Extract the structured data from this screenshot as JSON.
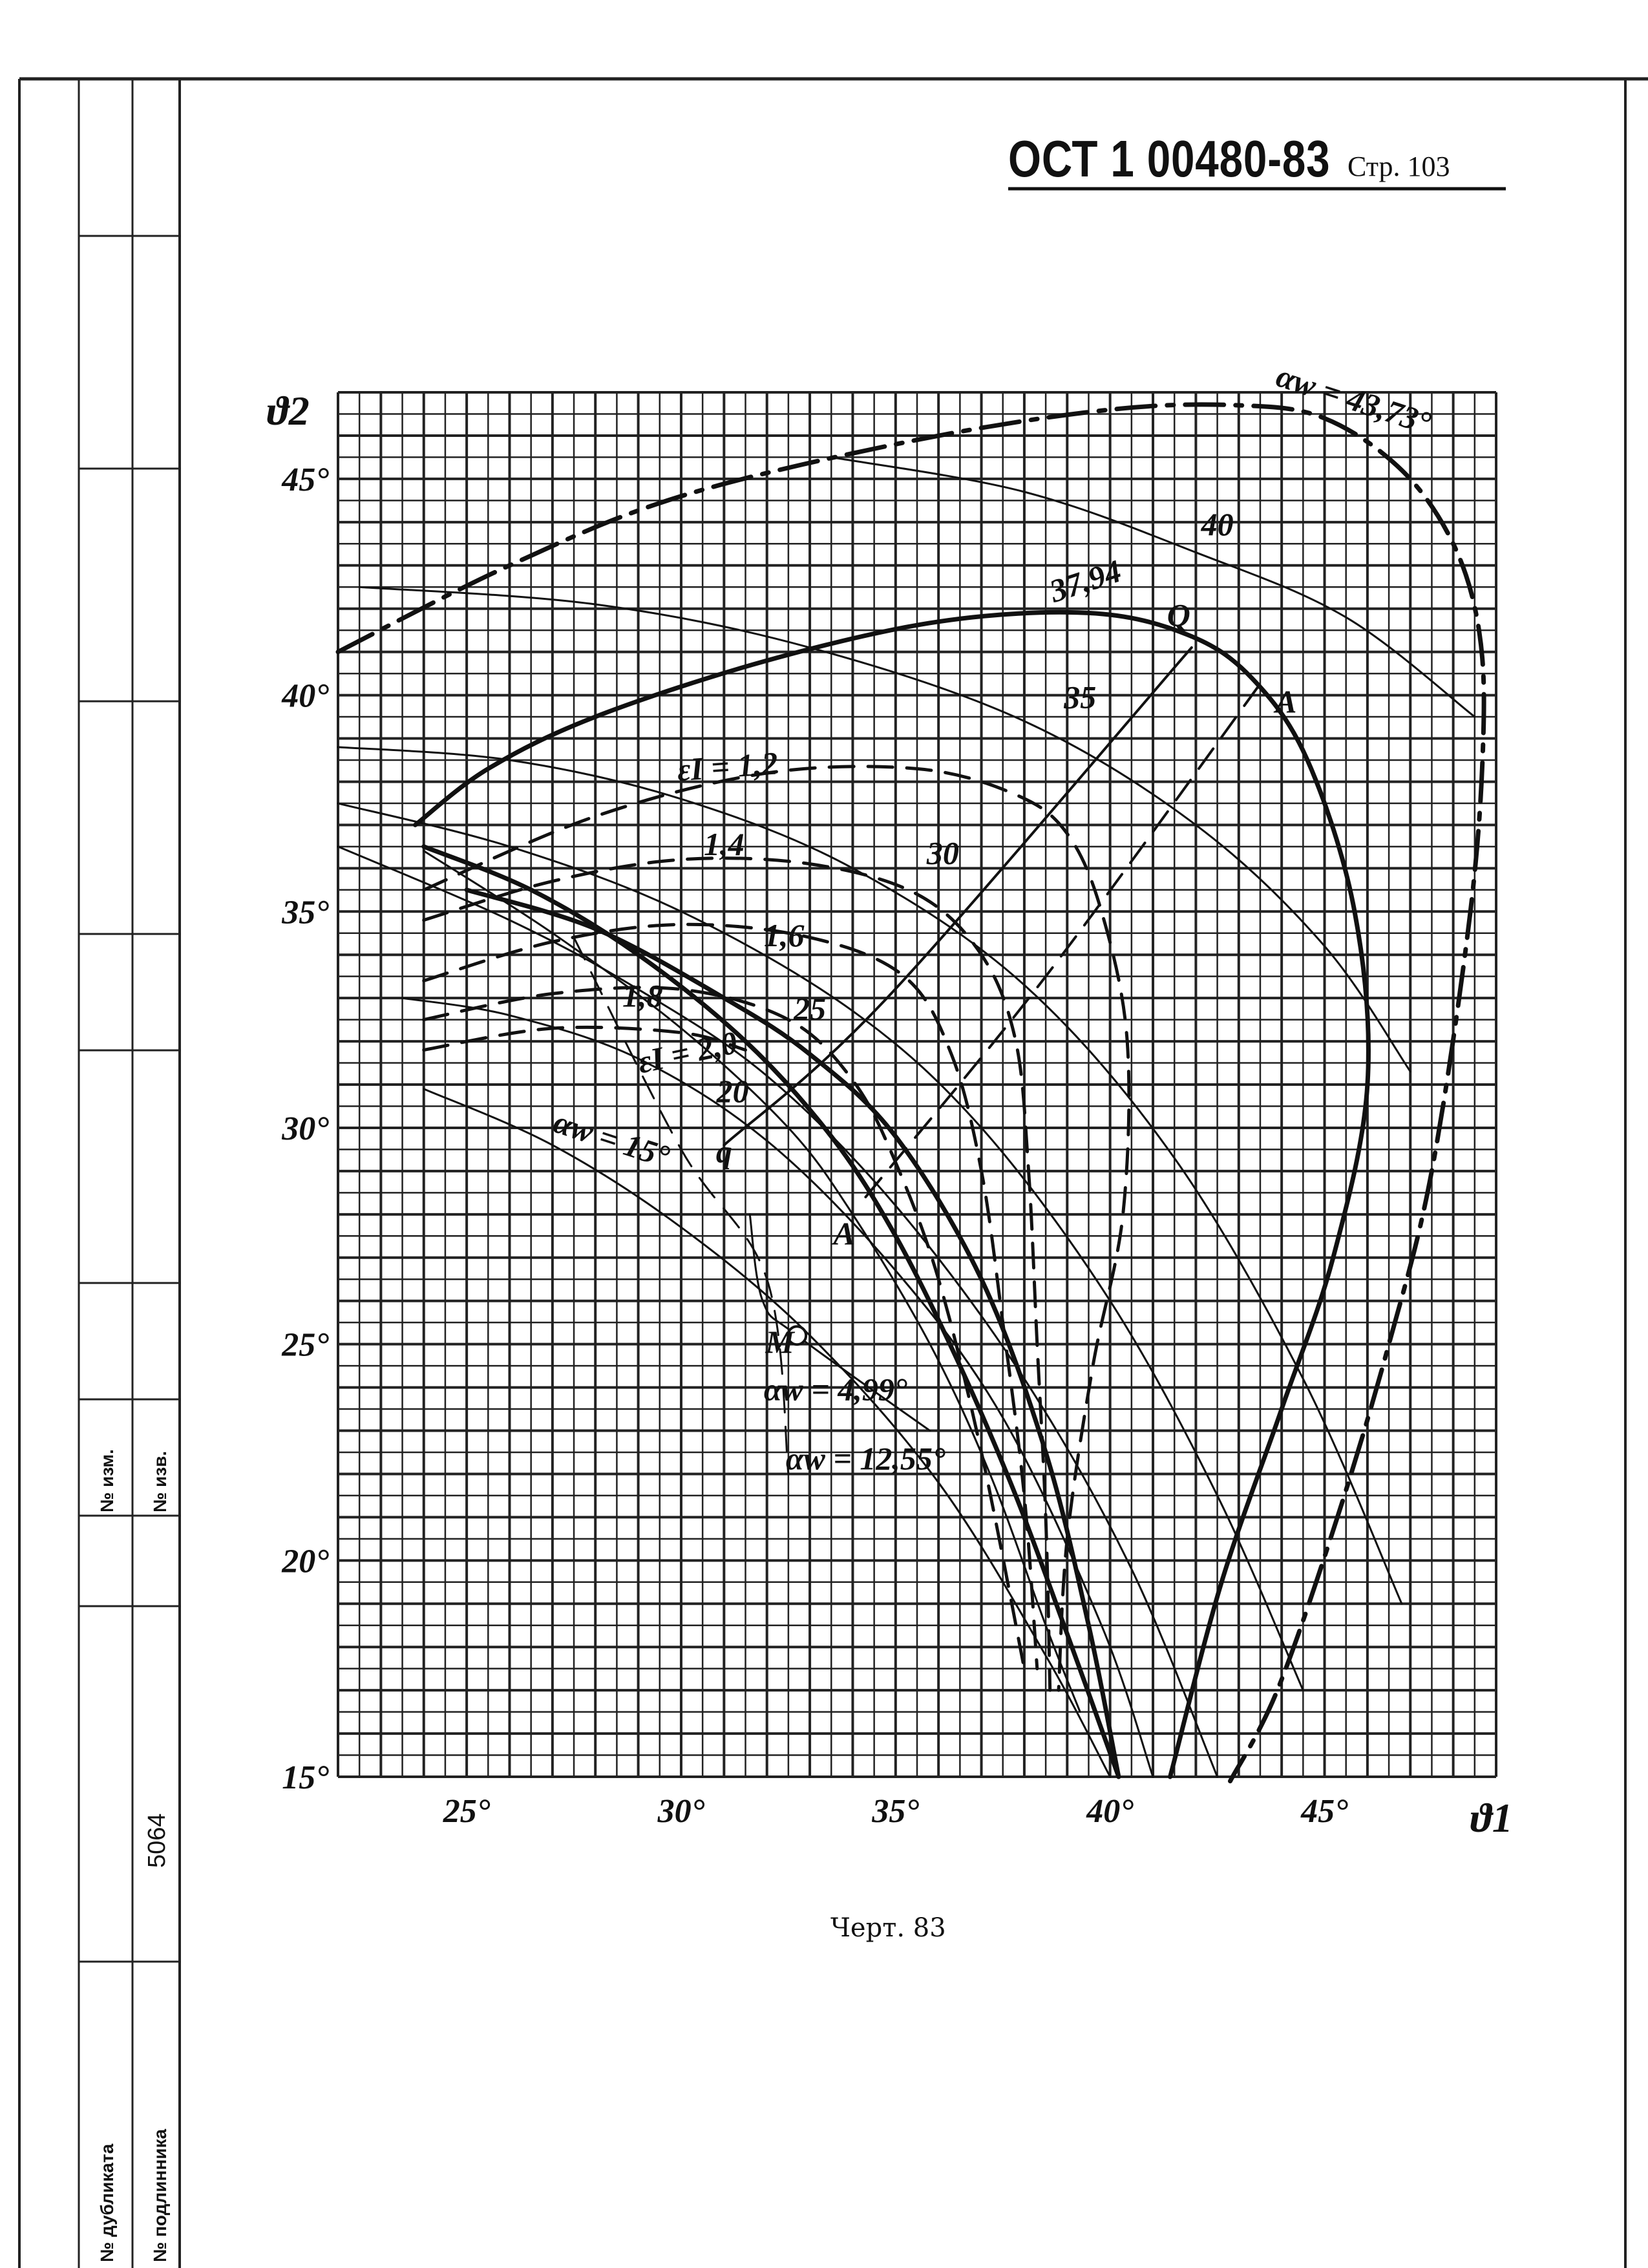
{
  "header": {
    "standard": "ОСТ 1 00480-83",
    "page_label": "Стр. 103"
  },
  "caption": "Черт. 83",
  "side_table": {
    "labels": [
      "№ изм.",
      "№ изв.",
      "№ дубликата",
      "№ подлинника"
    ],
    "number": "5064"
  },
  "chart_data": {
    "type": "line",
    "title": "",
    "xlabel": "ϑ1",
    "ylabel": "ϑ2",
    "xlim": [
      22,
      49
    ],
    "ylim": [
      15,
      47
    ],
    "x_ticks": [
      {
        "v": 25,
        "label": "25°"
      },
      {
        "v": 30,
        "label": "30°"
      },
      {
        "v": 35,
        "label": "35°"
      },
      {
        "v": 40,
        "label": "40°"
      },
      {
        "v": 45,
        "label": "45°"
      }
    ],
    "y_ticks": [
      {
        "v": 15,
        "label": "15°"
      },
      {
        "v": 20,
        "label": "20°"
      },
      {
        "v": 25,
        "label": "25°"
      },
      {
        "v": 30,
        "label": "30°"
      },
      {
        "v": 35,
        "label": "35°"
      },
      {
        "v": 40,
        "label": "40°"
      },
      {
        "v": 45,
        "label": "45°"
      }
    ],
    "grid": true,
    "series": [
      {
        "name": "αw = 43,73°",
        "style": "dashdot",
        "width": 7,
        "points": [
          [
            22,
            41
          ],
          [
            26,
            43
          ],
          [
            30,
            44.6
          ],
          [
            35.5,
            45.9
          ],
          [
            40,
            46.6
          ],
          [
            43,
            46.7
          ],
          [
            45,
            46.4
          ],
          [
            46.8,
            45.2
          ],
          [
            48,
            43.5
          ],
          [
            48.6,
            41.5
          ],
          [
            48.7,
            39
          ],
          [
            48.4,
            35
          ],
          [
            47.5,
            29
          ],
          [
            46.5,
            25
          ],
          [
            45.3,
            21
          ],
          [
            43.9,
            17
          ],
          [
            42.8,
            14.9
          ]
        ]
      },
      {
        "name": "37,94",
        "style": "solid",
        "width": 7,
        "points": [
          [
            23.8,
            37
          ],
          [
            25.5,
            38.3
          ],
          [
            28,
            39.5
          ],
          [
            32,
            40.8
          ],
          [
            36,
            41.7
          ],
          [
            39.5,
            41.9
          ],
          [
            41.8,
            41.4
          ],
          [
            43.3,
            40.4
          ],
          [
            44.6,
            38.5
          ],
          [
            45.7,
            35
          ],
          [
            46,
            31
          ],
          [
            45.2,
            27
          ],
          [
            44,
            23.5
          ],
          [
            42.6,
            19.5
          ],
          [
            41.4,
            15
          ]
        ]
      },
      {
        "name": "εI = 1,2",
        "style": "dashed",
        "width": 5,
        "points": [
          [
            24,
            35.5
          ],
          [
            28,
            37.2
          ],
          [
            32,
            38.2
          ],
          [
            35.5,
            38.3
          ],
          [
            37.8,
            37.7
          ],
          [
            39,
            36.8
          ],
          [
            39.8,
            35
          ],
          [
            40.4,
            32
          ],
          [
            40.3,
            28
          ],
          [
            39.6,
            24.5
          ],
          [
            39,
            20.5
          ],
          [
            38.8,
            17
          ]
        ]
      },
      {
        "name": "1,4",
        "style": "dashed",
        "width": 5,
        "points": [
          [
            24,
            34.8
          ],
          [
            27,
            35.7
          ],
          [
            30,
            36.2
          ],
          [
            33,
            36.1
          ],
          [
            35.5,
            35.4
          ],
          [
            37,
            34
          ],
          [
            37.8,
            32
          ],
          [
            38.1,
            29
          ],
          [
            38.3,
            25
          ],
          [
            38.5,
            21
          ],
          [
            38.6,
            17
          ]
        ]
      },
      {
        "name": "1,6",
        "style": "dashed",
        "width": 5,
        "points": [
          [
            24,
            33.4
          ],
          [
            27,
            34.3
          ],
          [
            30,
            34.7
          ],
          [
            33,
            34.4
          ],
          [
            35.2,
            33.5
          ],
          [
            36.3,
            31.7
          ],
          [
            37,
            29
          ],
          [
            37.5,
            25.5
          ],
          [
            38,
            21.5
          ],
          [
            38.3,
            17.5
          ]
        ]
      },
      {
        "name": "1,8",
        "style": "dashed",
        "width": 5,
        "points": [
          [
            24,
            32.5
          ],
          [
            27,
            33.1
          ],
          [
            30,
            33.2
          ],
          [
            32.5,
            32.5
          ],
          [
            34,
            31.1
          ],
          [
            35,
            29.2
          ],
          [
            36,
            26.5
          ],
          [
            37,
            22.5
          ],
          [
            38,
            17.5
          ]
        ]
      },
      {
        "name": "εI = 2,0",
        "style": "dashed",
        "width": 5,
        "points": [
          [
            24,
            31.8
          ],
          [
            27,
            32.3
          ],
          [
            30,
            32.2
          ],
          [
            31.5,
            31.8
          ]
        ]
      },
      {
        "name": "40",
        "style": "solid",
        "width": 3,
        "points": [
          [
            33.5,
            45.5
          ],
          [
            38,
            44.7
          ],
          [
            42,
            43.3
          ],
          [
            45.5,
            41.8
          ],
          [
            48.5,
            39.5
          ]
        ]
      },
      {
        "name": "35",
        "style": "solid",
        "width": 3,
        "points": [
          [
            22.5,
            42.5
          ],
          [
            28,
            42.1
          ],
          [
            33,
            41.1
          ],
          [
            38,
            39.4
          ],
          [
            42,
            37
          ],
          [
            45,
            34.2
          ],
          [
            47,
            31.3
          ]
        ]
      },
      {
        "name": "30",
        "style": "solid",
        "width": 3,
        "points": [
          [
            22,
            38.8
          ],
          [
            26,
            38.5
          ],
          [
            30,
            37.6
          ],
          [
            34,
            36
          ],
          [
            38,
            33.3
          ],
          [
            41.5,
            29.3
          ],
          [
            44.5,
            24.2
          ],
          [
            46.8,
            19
          ]
        ]
      },
      {
        "name": "25",
        "style": "solid",
        "width": 3,
        "points": [
          [
            22,
            37.5
          ],
          [
            26,
            36.5
          ],
          [
            30,
            35
          ],
          [
            34,
            32.7
          ],
          [
            37,
            30
          ],
          [
            40,
            26
          ],
          [
            42.5,
            21.5
          ],
          [
            44.5,
            17
          ]
        ]
      },
      {
        "name": "20",
        "style": "solid",
        "width": 3,
        "points": [
          [
            22,
            36.5
          ],
          [
            26,
            34.8
          ],
          [
            29,
            33.2
          ],
          [
            32,
            31.2
          ],
          [
            35,
            28.2
          ],
          [
            38,
            24.2
          ],
          [
            40.5,
            19.8
          ],
          [
            42.5,
            15
          ]
        ]
      },
      {
        "name": "αw = 15°",
        "style": "solid",
        "width": 3,
        "points": [
          [
            23.5,
            33
          ],
          [
            26,
            32.6
          ],
          [
            29,
            31.6
          ],
          [
            32,
            29.7
          ],
          [
            35,
            26.7
          ],
          [
            37.5,
            23.3
          ],
          [
            39.8,
            18.5
          ],
          [
            41,
            15
          ]
        ]
      },
      {
        "name": "αw = 12,55°",
        "style": "solid",
        "width": 3,
        "points": [
          [
            24,
            30.9
          ],
          [
            27,
            29.6
          ],
          [
            30,
            27.7
          ],
          [
            33,
            25.2
          ],
          [
            36,
            21.8
          ],
          [
            38.5,
            17.8
          ],
          [
            40,
            15
          ]
        ]
      },
      {
        "name": "αw = 4,99°",
        "style": "solid",
        "width": 7,
        "points": [
          [
            24,
            36.5
          ],
          [
            26.5,
            35.5
          ],
          [
            29,
            34
          ],
          [
            31.5,
            32
          ],
          [
            33.5,
            29.8
          ],
          [
            35,
            27.5
          ],
          [
            36.5,
            24.5
          ],
          [
            37.8,
            21.5
          ],
          [
            39,
            18.3
          ],
          [
            40.2,
            15
          ]
        ]
      },
      {
        "name": "",
        "style": "solid",
        "width": 7,
        "points": [
          [
            25,
            35.5
          ],
          [
            28,
            34.6
          ],
          [
            31,
            33
          ],
          [
            33,
            31.7
          ],
          [
            35,
            29.8
          ],
          [
            37,
            26.5
          ],
          [
            38.5,
            22.5
          ],
          [
            39.5,
            18.5
          ],
          [
            40.2,
            15
          ]
        ]
      },
      {
        "name": "",
        "style": "solid",
        "width": 3,
        "points": [
          [
            24,
            36.4
          ],
          [
            27,
            34.5
          ],
          [
            30,
            32.3
          ],
          [
            32.5,
            30
          ],
          [
            34,
            28
          ],
          [
            35.8,
            25
          ],
          [
            37.2,
            22
          ],
          [
            38.5,
            18.5
          ],
          [
            39.3,
            16.5
          ]
        ]
      },
      {
        "name": "qQ",
        "style": "solid",
        "width": 4,
        "points": [
          [
            31,
            29.6
          ],
          [
            34.8,
            33
          ],
          [
            41.9,
            41.1
          ]
        ]
      },
      {
        "name": "AA",
        "style": "dashed",
        "width": 4,
        "points": [
          [
            34.3,
            28.4
          ],
          [
            38.5,
            33.5
          ],
          [
            43.6,
            40.4
          ]
        ]
      },
      {
        "name": "M",
        "style": "solid",
        "width": 3,
        "points": [
          [
            31.6,
            28
          ],
          [
            31.9,
            26
          ],
          [
            32.7,
            25.2
          ],
          [
            35.8,
            23
          ]
        ]
      },
      {
        "name": "",
        "style": "dashed",
        "width": 3,
        "points": [
          [
            27.5,
            34.4
          ],
          [
            30,
            29.5
          ],
          [
            32,
            26.5
          ],
          [
            32.5,
            22
          ]
        ]
      }
    ],
    "labels": [
      {
        "text": "αw = 43,73°",
        "x": 45.6,
        "y": 46.6,
        "rot": 18
      },
      {
        "text": "40",
        "x": 42.5,
        "y": 43.7,
        "rot": 0
      },
      {
        "text": "37,94",
        "x": 39.5,
        "y": 42.4,
        "rot": -18
      },
      {
        "text": "Q",
        "x": 41.6,
        "y": 41.6,
        "rot": 0
      },
      {
        "text": "35",
        "x": 39.3,
        "y": 39.7,
        "rot": 0
      },
      {
        "text": "A",
        "x": 44.1,
        "y": 39.6,
        "rot": 0
      },
      {
        "text": "εI = 1,2",
        "x": 31.1,
        "y": 38.1,
        "rot": -4
      },
      {
        "text": "1,4",
        "x": 31,
        "y": 36.3,
        "rot": 0
      },
      {
        "text": "30",
        "x": 36.1,
        "y": 36.1,
        "rot": 0
      },
      {
        "text": "1,6",
        "x": 32.4,
        "y": 34.2,
        "rot": 0
      },
      {
        "text": "1,8",
        "x": 29.1,
        "y": 32.8,
        "rot": 0
      },
      {
        "text": "25",
        "x": 33,
        "y": 32.5,
        "rot": 0
      },
      {
        "text": "εI = 2,0",
        "x": 30.2,
        "y": 31.5,
        "rot": -12
      },
      {
        "text": "20",
        "x": 31.2,
        "y": 30.6,
        "rot": 0
      },
      {
        "text": "αw = 15°",
        "x": 28.3,
        "y": 29.5,
        "rot": 18
      },
      {
        "text": "q",
        "x": 31,
        "y": 29.2,
        "rot": 0
      },
      {
        "text": "A",
        "x": 33.8,
        "y": 27.3,
        "rot": 0
      },
      {
        "text": "M",
        "x": 32.3,
        "y": 24.8,
        "rot": 0
      },
      {
        "text": "αw = 4,99°",
        "x": 33.6,
        "y": 23.7,
        "rot": 0
      },
      {
        "text": "αw = 12,55°",
        "x": 34.3,
        "y": 22.1,
        "rot": 0
      }
    ],
    "points": [
      {
        "name": "M",
        "x": 32.7,
        "y": 25.2,
        "marker": "open-circle"
      }
    ]
  }
}
